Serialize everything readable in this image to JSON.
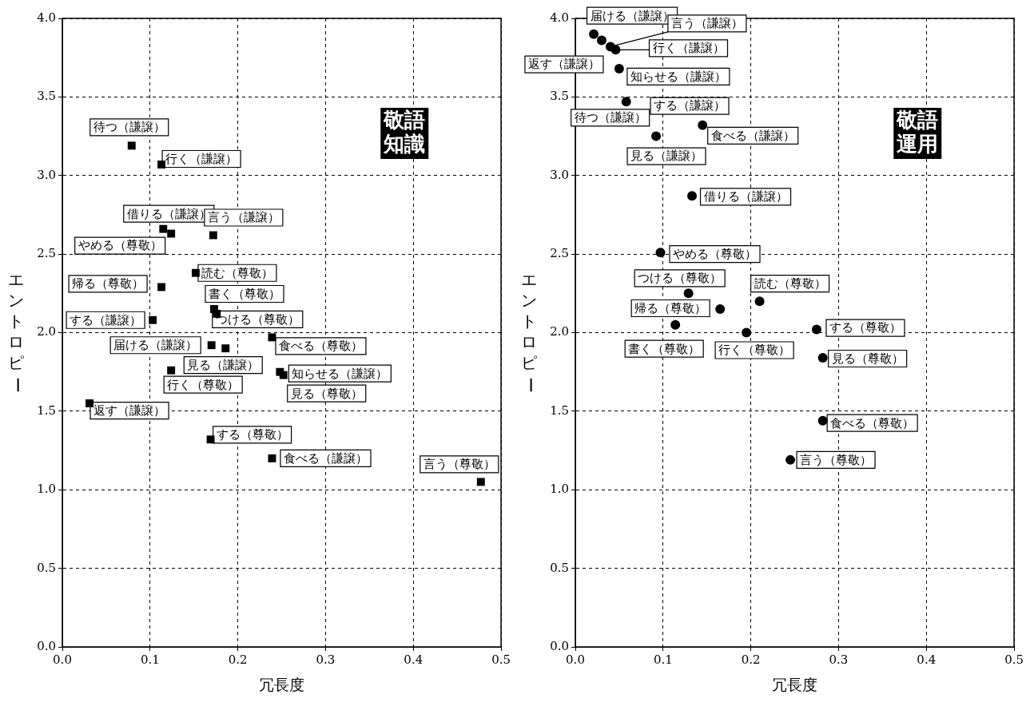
{
  "chart_data": [
    {
      "type": "scatter",
      "xlabel": "冗長度",
      "ylabel": "エントロピー",
      "xlim": [
        0,
        0.5
      ],
      "ylim": [
        0,
        4
      ],
      "xticks": [
        {
          "value": 0,
          "label": "0.0"
        },
        {
          "value": 0.1,
          "label": "0.1"
        },
        {
          "value": 0.2,
          "label": "0.2"
        },
        {
          "value": 0.3,
          "label": "0.3"
        },
        {
          "value": 0.4,
          "label": "0.4"
        },
        {
          "value": 0.5,
          "label": "0.5"
        }
      ],
      "yticks": [
        {
          "value": 0,
          "label": "0.0"
        },
        {
          "value": 0.5,
          "label": "0.5"
        },
        {
          "value": 1,
          "label": "1.0"
        },
        {
          "value": 1.5,
          "label": "1.5"
        },
        {
          "value": 2,
          "label": "2.0"
        },
        {
          "value": 2.5,
          "label": "2.5"
        },
        {
          "value": 3,
          "label": "3.0"
        },
        {
          "value": 3.5,
          "label": "3.5"
        },
        {
          "value": 4,
          "label": "4.0"
        }
      ],
      "grid": true,
      "marker": "square",
      "series": [
        {
          "color": "#000000",
          "x": [
            0.079,
            0.113,
            0.115,
            0.124,
            0.172,
            0.152,
            0.113,
            0.173,
            0.176,
            0.103,
            0.239,
            0.17,
            0.186,
            0.124,
            0.248,
            0.252,
            0.031,
            0.169,
            0.239,
            0.477
          ],
          "values": [
            3.19,
            3.07,
            2.66,
            2.63,
            2.62,
            2.38,
            2.29,
            2.15,
            2.12,
            2.08,
            1.97,
            1.92,
            1.9,
            1.76,
            1.75,
            1.73,
            1.55,
            1.32,
            1.2,
            1.05
          ]
        }
      ],
      "annotations": [
        {
          "text": "待つ（謙譲）",
          "x": 0.079,
          "y": 3.19
        },
        {
          "text": "行く（謙譲）",
          "x": 0.113,
          "y": 3.07
        },
        {
          "text": "借りる（謙譲）",
          "x": 0.115,
          "y": 2.66
        },
        {
          "text": "やめる（尊敬）",
          "x": 0.124,
          "y": 2.63
        },
        {
          "text": "言う（謙譲）",
          "x": 0.172,
          "y": 2.62
        },
        {
          "text": "読む（尊敬）",
          "x": 0.152,
          "y": 2.38
        },
        {
          "text": "帰る（尊敬）",
          "x": 0.113,
          "y": 2.29
        },
        {
          "text": "書く（尊敬）",
          "x": 0.173,
          "y": 2.15
        },
        {
          "text": "つける（尊敬）",
          "x": 0.176,
          "y": 2.12
        },
        {
          "text": "する（謙譲）",
          "x": 0.103,
          "y": 2.08
        },
        {
          "text": "食べる（尊敬）",
          "x": 0.239,
          "y": 1.97
        },
        {
          "text": "届ける（謙譲）",
          "x": 0.17,
          "y": 1.92
        },
        {
          "text": "見る（謙譲）",
          "x": 0.186,
          "y": 1.9
        },
        {
          "text": "行く（尊敬）",
          "x": 0.124,
          "y": 1.76
        },
        {
          "text": "知らせる（謙譲）",
          "x": 0.248,
          "y": 1.75
        },
        {
          "text": "見る（尊敬）",
          "x": 0.252,
          "y": 1.73
        },
        {
          "text": "返す（謙譲）",
          "x": 0.031,
          "y": 1.55
        },
        {
          "text": "する（尊敬）",
          "x": 0.169,
          "y": 1.32
        },
        {
          "text": "食べる（謙譲）",
          "x": 0.239,
          "y": 1.2
        },
        {
          "text": "言う（尊敬）",
          "x": 0.477,
          "y": 1.05
        },
        "敬語知識"
      ]
    },
    {
      "type": "scatter",
      "xlabel": "冗長度",
      "ylabel": "エントロピー",
      "xlim": [
        0,
        0.5
      ],
      "ylim": [
        0,
        4
      ],
      "xticks": [
        {
          "value": 0,
          "label": "0.0"
        },
        {
          "value": 0.1,
          "label": "0.1"
        },
        {
          "value": 0.2,
          "label": "0.2"
        },
        {
          "value": 0.3,
          "label": "0.3"
        },
        {
          "value": 0.4,
          "label": "0.4"
        },
        {
          "value": 0.5,
          "label": "0.5"
        }
      ],
      "yticks": [
        {
          "value": 0,
          "label": "0.0"
        },
        {
          "value": 0.5,
          "label": "0.5"
        },
        {
          "value": 1,
          "label": "1.0"
        },
        {
          "value": 1.5,
          "label": "1.5"
        },
        {
          "value": 2,
          "label": "2.0"
        },
        {
          "value": 2.5,
          "label": "2.5"
        },
        {
          "value": 3,
          "label": "3.0"
        },
        {
          "value": 3.5,
          "label": "3.5"
        },
        {
          "value": 4,
          "label": "4.0"
        }
      ],
      "grid": true,
      "marker": "circle",
      "series": [
        {
          "color": "#000000",
          "x": [
            0.021,
            0.03,
            0.04,
            0.046,
            0.05,
            0.058,
            0.092,
            0.145,
            null,
            0.133,
            0.097,
            0.129,
            0.165,
            0.21,
            0.114,
            0.195,
            0.275,
            0.282,
            0.282,
            0.245
          ],
          "values": [
            3.9,
            3.86,
            3.82,
            3.8,
            3.68,
            3.47,
            3.25,
            3.32,
            null,
            2.87,
            2.51,
            2.25,
            2.15,
            2.2,
            2.05,
            2,
            2.02,
            1.84,
            1.44,
            1.19
          ]
        }
      ],
      "annotations": [
        {
          "text": "届ける（謙譲）",
          "x": 0.021,
          "y": 3.9
        },
        {
          "text": "返す（謙譲）",
          "x": 0.03,
          "y": 3.86
        },
        {
          "text": "言う（謙譲）",
          "x": 0.04,
          "y": 3.82
        },
        {
          "text": "行く（謙譲）",
          "x": 0.046,
          "y": 3.8
        },
        {
          "text": "知らせる（謙譲）",
          "x": 0.05,
          "y": 3.68
        },
        {
          "text": "待つ（謙譲）",
          "x": 0.058,
          "y": 3.47
        },
        {
          "text": "する（謙譲）",
          "x": 0.092,
          "y": 3.25
        },
        {
          "text": "食べる（謙譲）",
          "x": 0.145,
          "y": 3.32
        },
        {
          "text": "見る（謙譲）",
          "x": 0.092,
          "y": 3.25
        },
        {
          "text": "借りる（謙譲）",
          "x": 0.133,
          "y": 2.87
        },
        {
          "text": "やめる（尊敬）",
          "x": 0.097,
          "y": 2.51
        },
        {
          "text": "つける（尊敬）",
          "x": 0.129,
          "y": 2.25
        },
        {
          "text": "帰る（尊敬）",
          "x": 0.165,
          "y": 2.15
        },
        {
          "text": "読む（尊敬）",
          "x": 0.21,
          "y": 2.2
        },
        {
          "text": "書く（尊敬）",
          "x": 0.114,
          "y": 2.05
        },
        {
          "text": "行く（尊敬）",
          "x": 0.195,
          "y": 2
        },
        {
          "text": "する（尊敬）",
          "x": 0.275,
          "y": 2.02
        },
        {
          "text": "見る（尊敬）",
          "x": 0.282,
          "y": 1.84
        },
        {
          "text": "食べる（尊敬）",
          "x": 0.282,
          "y": 1.44
        },
        {
          "text": "言う（尊敬）",
          "x": 0.245,
          "y": 1.19
        },
        "敬語運用"
      ]
    }
  ]
}
